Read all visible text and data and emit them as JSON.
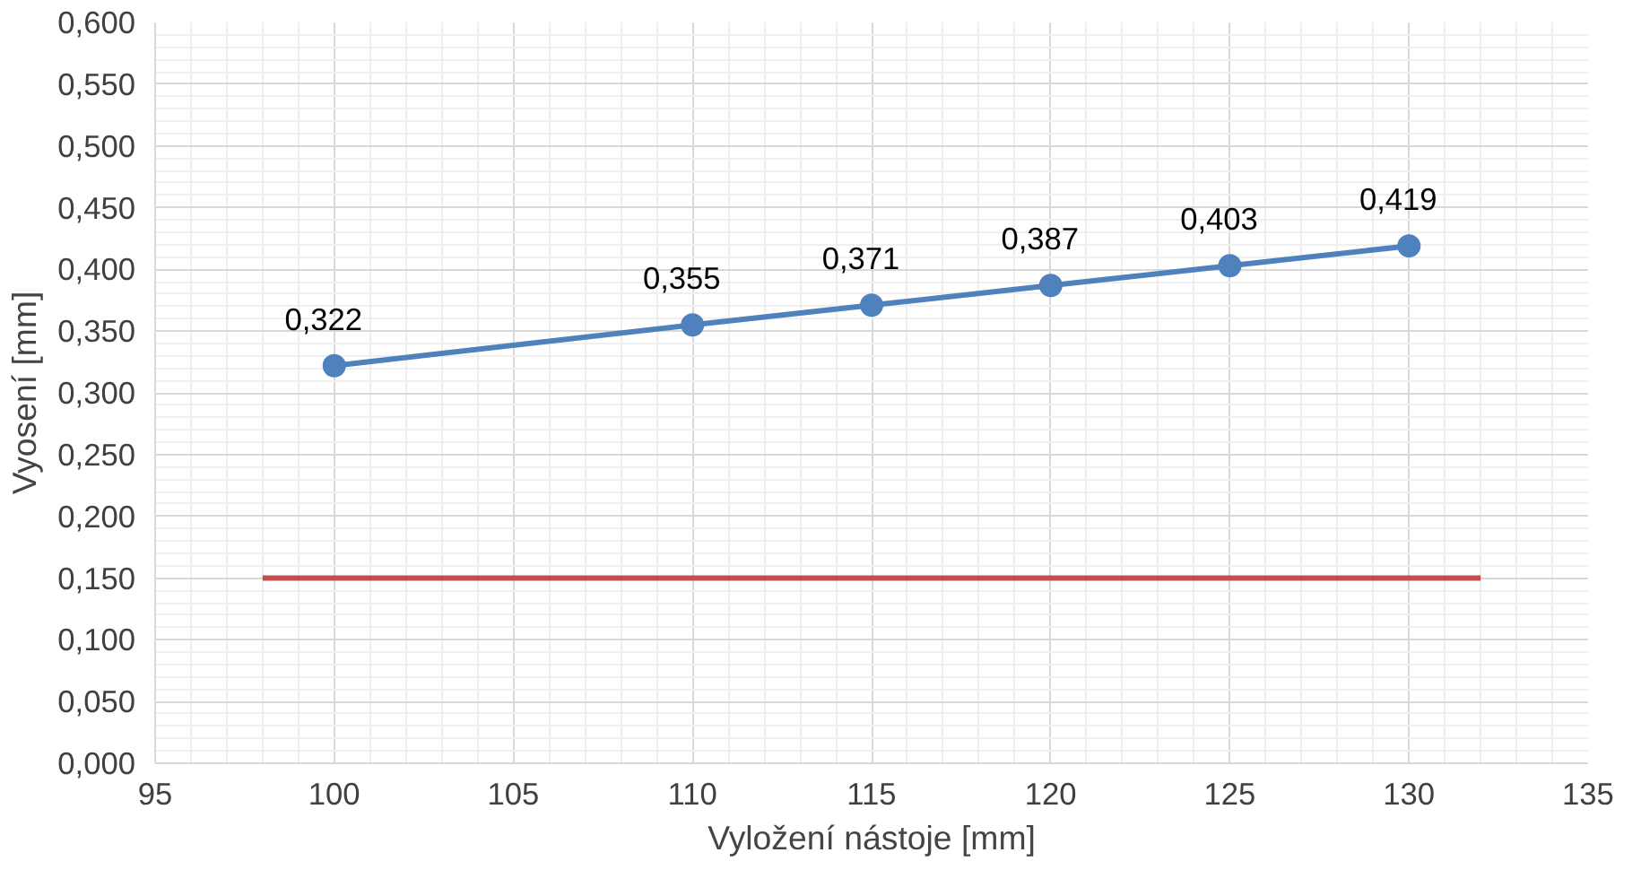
{
  "chart_data": {
    "type": "line",
    "xlabel": "Vyložení nástoje [mm]",
    "ylabel": "Vyosení [mm]",
    "xlim": [
      95,
      135
    ],
    "xticks": [
      95,
      100,
      105,
      110,
      115,
      120,
      125,
      130,
      135
    ],
    "ylim": [
      0,
      0.6
    ],
    "yticks": [
      {
        "value": 0,
        "label": "0,000"
      },
      {
        "value": 0.05,
        "label": "0,050"
      },
      {
        "value": 0.1,
        "label": "0,100"
      },
      {
        "value": 0.15,
        "label": "0,150"
      },
      {
        "value": 0.2,
        "label": "0,200"
      },
      {
        "value": 0.25,
        "label": "0,250"
      },
      {
        "value": 0.3,
        "label": "0,300"
      },
      {
        "value": 0.35,
        "label": "0,350"
      },
      {
        "value": 0.4,
        "label": "0,400"
      },
      {
        "value": 0.45,
        "label": "0,450"
      },
      {
        "value": 0.5,
        "label": "0,500"
      },
      {
        "value": 0.55,
        "label": "0,550"
      },
      {
        "value": 0.6,
        "label": "0,600"
      }
    ],
    "grid": true,
    "series": [
      {
        "color": "#4f81bd",
        "marker": "circle",
        "x": [
          100,
          110,
          115,
          120,
          125,
          130
        ],
        "values": [
          0.322,
          0.355,
          0.371,
          0.387,
          0.403,
          0.419
        ],
        "value_labels": [
          "0,322",
          "0,355",
          "0,371",
          "0,387",
          "0,403",
          "0,419"
        ]
      },
      {
        "color": "#c0504d",
        "marker": "none",
        "x": [
          98,
          132
        ],
        "values": [
          0.15,
          0.15
        ]
      }
    ]
  }
}
